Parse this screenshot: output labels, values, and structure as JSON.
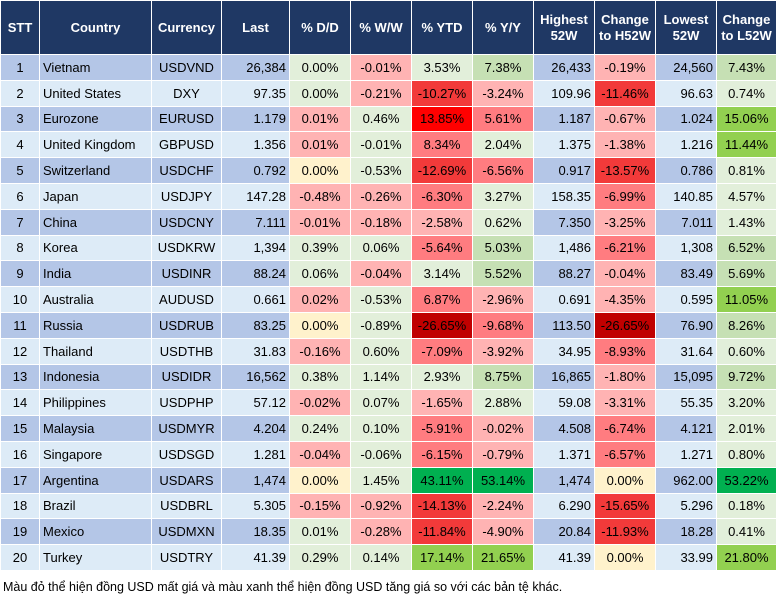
{
  "headers": [
    "STT",
    "Country",
    "Currency",
    "Last",
    "% D/D",
    "% W/W",
    "% YTD",
    "% Y/Y",
    "Highest 52W",
    "Change to H52W",
    "Lowest 52W",
    "Change to L52W"
  ],
  "colors": {
    "header_bg": "#1f3864",
    "row_odd": "#b4c6e7",
    "row_even": "#ddebf7",
    "p": "#ffb3b3",
    "g": "#e2efda",
    "G": "#c6e0b4",
    "GG": "#92d050",
    "GGG": "#00b050",
    "r": "#ff7c80",
    "R": "#f23a3a",
    "RR": "#ff0000",
    "DR": "#c00000",
    "y": "#fff2cc"
  },
  "rows": [
    {
      "stt": "1",
      "country": "Vietnam",
      "currency": "USDVND",
      "last": "26,384",
      "dd": "0.00%",
      "ww": "-0.01%",
      "ytd": "3.53%",
      "yy": "7.38%",
      "high": "26,433",
      "h52": "-0.19%",
      "low": "24,560",
      "l52": "7.43%",
      "shade": [
        "g",
        "p",
        "g",
        "G",
        "p",
        "G"
      ]
    },
    {
      "stt": "2",
      "country": "United States",
      "currency": "DXY",
      "last": "97.35",
      "dd": "0.00%",
      "ww": "-0.21%",
      "ytd": "-10.27%",
      "yy": "-3.24%",
      "high": "109.96",
      "h52": "-11.46%",
      "low": "96.63",
      "l52": "0.74%",
      "shade": [
        "g",
        "p",
        "R",
        "p",
        "R",
        "g"
      ]
    },
    {
      "stt": "3",
      "country": "Eurozone",
      "currency": "EURUSD",
      "last": "1.179",
      "dd": "0.01%",
      "ww": "0.46%",
      "ytd": "13.85%",
      "yy": "5.61%",
      "high": "1.187",
      "h52": "-0.67%",
      "low": "1.024",
      "l52": "15.06%",
      "shade": [
        "p",
        "g",
        "RR",
        "r",
        "p",
        "GG"
      ]
    },
    {
      "stt": "4",
      "country": "United Kingdom",
      "currency": "GBPUSD",
      "last": "1.356",
      "dd": "0.01%",
      "ww": "-0.01%",
      "ytd": "8.34%",
      "yy": "2.04%",
      "high": "1.375",
      "h52": "-1.38%",
      "low": "1.216",
      "l52": "11.44%",
      "shade": [
        "p",
        "g",
        "r",
        "g",
        "p",
        "GG"
      ]
    },
    {
      "stt": "5",
      "country": "Switzerland",
      "currency": "USDCHF",
      "last": "0.792",
      "dd": "0.00%",
      "ww": "-0.53%",
      "ytd": "-12.69%",
      "yy": "-6.56%",
      "high": "0.917",
      "h52": "-13.57%",
      "low": "0.786",
      "l52": "0.81%",
      "shade": [
        "y",
        "g",
        "R",
        "r",
        "R",
        "g"
      ]
    },
    {
      "stt": "6",
      "country": "Japan",
      "currency": "USDJPY",
      "last": "147.28",
      "dd": "-0.48%",
      "ww": "-0.26%",
      "ytd": "-6.30%",
      "yy": "3.27%",
      "high": "158.35",
      "h52": "-6.99%",
      "low": "140.85",
      "l52": "4.57%",
      "shade": [
        "p",
        "p",
        "r",
        "g",
        "r",
        "g"
      ]
    },
    {
      "stt": "7",
      "country": "China",
      "currency": "USDCNY",
      "last": "7.111",
      "dd": "-0.01%",
      "ww": "-0.18%",
      "ytd": "-2.58%",
      "yy": "0.62%",
      "high": "7.350",
      "h52": "-3.25%",
      "low": "7.011",
      "l52": "1.43%",
      "shade": [
        "p",
        "p",
        "p",
        "g",
        "p",
        "g"
      ]
    },
    {
      "stt": "8",
      "country": "Korea",
      "currency": "USDKRW",
      "last": "1,394",
      "dd": "0.39%",
      "ww": "0.06%",
      "ytd": "-5.64%",
      "yy": "5.03%",
      "high": "1,486",
      "h52": "-6.21%",
      "low": "1,308",
      "l52": "6.52%",
      "shade": [
        "g",
        "g",
        "r",
        "G",
        "r",
        "G"
      ]
    },
    {
      "stt": "9",
      "country": "India",
      "currency": "USDINR",
      "last": "88.24",
      "dd": "0.06%",
      "ww": "-0.04%",
      "ytd": "3.14%",
      "yy": "5.52%",
      "high": "88.27",
      "h52": "-0.04%",
      "low": "83.49",
      "l52": "5.69%",
      "shade": [
        "g",
        "p",
        "g",
        "G",
        "p",
        "G"
      ]
    },
    {
      "stt": "10",
      "country": "Australia",
      "currency": "AUDUSD",
      "last": "0.661",
      "dd": "0.02%",
      "ww": "-0.53%",
      "ytd": "6.87%",
      "yy": "-2.96%",
      "high": "0.691",
      "h52": "-4.35%",
      "low": "0.595",
      "l52": "11.05%",
      "shade": [
        "p",
        "g",
        "r",
        "p",
        "p",
        "GG"
      ]
    },
    {
      "stt": "11",
      "country": "Russia",
      "currency": "USDRUB",
      "last": "83.25",
      "dd": "0.00%",
      "ww": "-0.89%",
      "ytd": "-26.65%",
      "yy": "-9.68%",
      "high": "113.50",
      "h52": "-26.65%",
      "low": "76.90",
      "l52": "8.26%",
      "shade": [
        "y",
        "g",
        "DR",
        "r",
        "DR",
        "G"
      ]
    },
    {
      "stt": "12",
      "country": "Thailand",
      "currency": "USDTHB",
      "last": "31.83",
      "dd": "-0.16%",
      "ww": "0.60%",
      "ytd": "-7.09%",
      "yy": "-3.92%",
      "high": "34.95",
      "h52": "-8.93%",
      "low": "31.64",
      "l52": "0.60%",
      "shade": [
        "p",
        "g",
        "r",
        "p",
        "r",
        "g"
      ]
    },
    {
      "stt": "13",
      "country": "Indonesia",
      "currency": "USDIDR",
      "last": "16,562",
      "dd": "0.38%",
      "ww": "1.14%",
      "ytd": "2.93%",
      "yy": "8.75%",
      "high": "16,865",
      "h52": "-1.80%",
      "low": "15,095",
      "l52": "9.72%",
      "shade": [
        "g",
        "g",
        "g",
        "G",
        "p",
        "G"
      ]
    },
    {
      "stt": "14",
      "country": "Philippines",
      "currency": "USDPHP",
      "last": "57.12",
      "dd": "-0.02%",
      "ww": "0.07%",
      "ytd": "-1.65%",
      "yy": "2.88%",
      "high": "59.08",
      "h52": "-3.31%",
      "low": "55.35",
      "l52": "3.20%",
      "shade": [
        "p",
        "g",
        "p",
        "g",
        "p",
        "g"
      ]
    },
    {
      "stt": "15",
      "country": "Malaysia",
      "currency": "USDMYR",
      "last": "4.204",
      "dd": "0.24%",
      "ww": "0.10%",
      "ytd": "-5.91%",
      "yy": "-0.02%",
      "high": "4.508",
      "h52": "-6.74%",
      "low": "4.121",
      "l52": "2.01%",
      "shade": [
        "g",
        "g",
        "r",
        "p",
        "r",
        "g"
      ]
    },
    {
      "stt": "16",
      "country": "Singapore",
      "currency": "USDSGD",
      "last": "1.281",
      "dd": "-0.04%",
      "ww": "-0.06%",
      "ytd": "-6.15%",
      "yy": "-0.79%",
      "high": "1.371",
      "h52": "-6.57%",
      "low": "1.271",
      "l52": "0.80%",
      "shade": [
        "p",
        "g",
        "r",
        "p",
        "r",
        "g"
      ]
    },
    {
      "stt": "17",
      "country": "Argentina",
      "currency": "USDARS",
      "last": "1,474",
      "dd": "0.00%",
      "ww": "1.45%",
      "ytd": "43.11%",
      "yy": "53.14%",
      "high": "1,474",
      "h52": "0.00%",
      "low": "962.00",
      "l52": "53.22%",
      "shade": [
        "y",
        "g",
        "GGG",
        "GGG",
        "y",
        "GGG"
      ]
    },
    {
      "stt": "18",
      "country": "Brazil",
      "currency": "USDBRL",
      "last": "5.305",
      "dd": "-0.15%",
      "ww": "-0.92%",
      "ytd": "-14.13%",
      "yy": "-2.24%",
      "high": "6.290",
      "h52": "-15.65%",
      "low": "5.296",
      "l52": "0.18%",
      "shade": [
        "p",
        "p",
        "R",
        "p",
        "R",
        "g"
      ]
    },
    {
      "stt": "19",
      "country": "Mexico",
      "currency": "USDMXN",
      "last": "18.35",
      "dd": "0.01%",
      "ww": "-0.28%",
      "ytd": "-11.84%",
      "yy": "-4.90%",
      "high": "20.84",
      "h52": "-11.93%",
      "low": "18.28",
      "l52": "0.41%",
      "shade": [
        "g",
        "p",
        "R",
        "p",
        "R",
        "g"
      ]
    },
    {
      "stt": "20",
      "country": "Turkey",
      "currency": "USDTRY",
      "last": "41.39",
      "dd": "0.29%",
      "ww": "0.14%",
      "ytd": "17.14%",
      "yy": "21.65%",
      "high": "41.39",
      "h52": "0.00%",
      "low": "33.99",
      "l52": "21.80%",
      "shade": [
        "g",
        "g",
        "GG",
        "GG",
        "y",
        "GG"
      ]
    }
  ],
  "footer": "Màu đỏ thể hiện đồng USD mất giá và màu xanh thể hiện đồng USD tăng giá so với các bản tệ khác."
}
